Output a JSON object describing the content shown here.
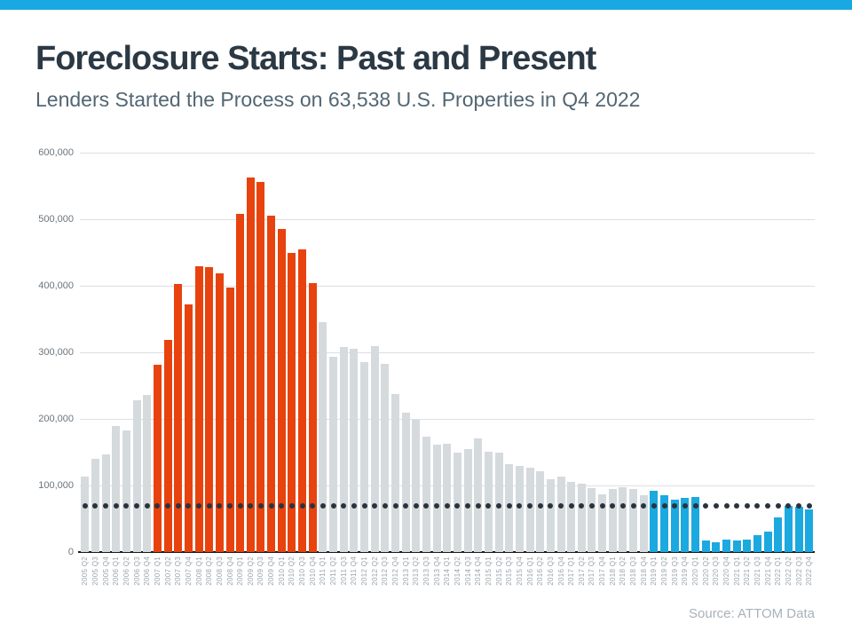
{
  "page": {
    "accent_color": "#18A8E2",
    "title": "Foreclosure Starts: Past and Present",
    "subtitle": "Lenders Started the Process on 63,538 U.S. Properties in Q4 2022",
    "source": "Source: ATTOM Data"
  },
  "chart_data": {
    "type": "bar",
    "title": "Foreclosure Starts: Past and Present",
    "subtitle": "Lenders Started the Process on 63,538 U.S. Properties in Q4 2022",
    "xlabel": "",
    "ylabel": "",
    "ylim": [
      0,
      600000
    ],
    "grid": "horizontal",
    "legend": "none",
    "y_ticks": [
      {
        "label": "600,000",
        "value": 600000
      },
      {
        "label": "500,000",
        "value": 500000
      },
      {
        "label": "400,000",
        "value": 400000
      },
      {
        "label": "300,000",
        "value": 300000
      },
      {
        "label": "200,000",
        "value": 200000
      },
      {
        "label": "100,000",
        "value": 100000
      },
      {
        "label": "0",
        "value": 0
      }
    ],
    "categories": [
      "2005 Q2",
      "2005 Q3",
      "2005 Q4",
      "2006 Q1",
      "2006 Q2",
      "2006 Q3",
      "2006 Q4",
      "2007 Q1",
      "2007 Q2",
      "2007 Q3",
      "2007 Q4",
      "2008 Q1",
      "2008 Q2",
      "2008 Q3",
      "2008 Q4",
      "2009 Q1",
      "2009 Q2",
      "2009 Q3",
      "2009 Q4",
      "2010 Q1",
      "2010 Q2",
      "2010 Q3",
      "2010 Q4",
      "2011 Q1",
      "2011 Q2",
      "2011 Q3",
      "2011 Q4",
      "2012 Q1",
      "2012 Q2",
      "2012 Q3",
      "2012 Q4",
      "2013 Q1",
      "2013 Q2",
      "2013 Q3",
      "2013 Q4",
      "2014 Q1",
      "2014 Q2",
      "2014 Q3",
      "2014 Q4",
      "2015 Q1",
      "2015 Q2",
      "2015 Q3",
      "2015 Q4",
      "2016 Q1",
      "2016 Q2",
      "2016 Q3",
      "2016 Q4",
      "2017 Q1",
      "2017 Q2",
      "2017 Q3",
      "2017 Q4",
      "2018 Q1",
      "2018 Q2",
      "2018 Q3",
      "2018 Q4",
      "2019 Q1",
      "2019 Q2",
      "2019 Q3",
      "2019 Q4",
      "2020 Q1",
      "2020 Q2",
      "2020 Q3",
      "2020 Q4",
      "2021 Q1",
      "2021 Q2",
      "2021 Q3",
      "2021 Q4",
      "2022 Q1",
      "2022 Q2",
      "2022 Q3",
      "2022 Q4"
    ],
    "values": [
      113000,
      140000,
      147000,
      189000,
      183000,
      228000,
      236000,
      281000,
      319000,
      403000,
      372000,
      429000,
      428000,
      419000,
      397000,
      508000,
      563000,
      556000,
      506000,
      485000,
      450000,
      455000,
      404000,
      345000,
      293000,
      308000,
      305000,
      286000,
      310000,
      283000,
      238000,
      209000,
      199000,
      173000,
      162000,
      163000,
      149000,
      155000,
      171000,
      151000,
      150000,
      132000,
      130000,
      127000,
      122000,
      110000,
      113000,
      106000,
      103000,
      96000,
      87000,
      95000,
      98000,
      95000,
      86000,
      92000,
      86000,
      79000,
      81000,
      83000,
      18000,
      15000,
      19000,
      18000,
      19000,
      26000,
      31000,
      52000,
      69000,
      68000,
      63538
    ],
    "bar_colors": {
      "default": "#D5DADD",
      "crisis": "#E8430E",
      "recent": "#1BA9E0"
    },
    "color_segments": [
      {
        "from_index": 0,
        "to_index": 6,
        "color_key": "default"
      },
      {
        "from_index": 7,
        "to_index": 22,
        "color_key": "crisis"
      },
      {
        "from_index": 23,
        "to_index": 54,
        "color_key": "default"
      },
      {
        "from_index": 55,
        "to_index": 70,
        "color_key": "recent"
      }
    ],
    "reference_line": {
      "value": 69000,
      "style": "dotted",
      "dot_color": "#2A333D"
    }
  }
}
